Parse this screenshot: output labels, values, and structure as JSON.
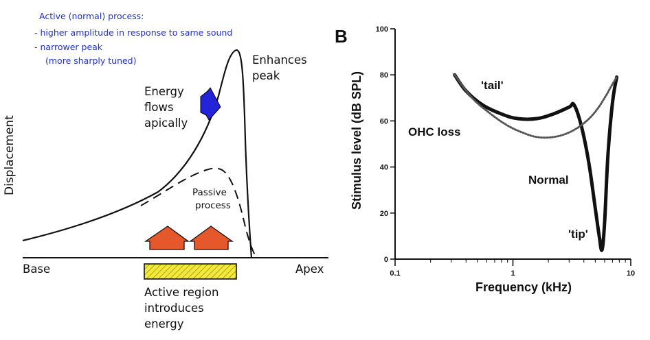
{
  "panel_a": {
    "note_title": "Active (normal) process:",
    "note_line1": "- higher amplitude in response to same sound",
    "note_line2": "- narrower peak",
    "note_line3": "(more sharply tuned)",
    "y_axis_label": "Displacement",
    "x_label_left": "Base",
    "x_label_right": "Apex",
    "peak_label_1": "Enhances",
    "peak_label_2": "peak",
    "energy_1": "Energy",
    "energy_2": "flows",
    "energy_3": "apically",
    "passive_1": "Passive",
    "passive_2": "process",
    "active_region_1": "Active region",
    "active_region_2": "introduces",
    "active_region_3": "energy",
    "colors": {
      "note": "#1f2fd6",
      "flow_arrow": "#2323d8",
      "energy_arrows": "#e4582c",
      "active_region": "#f2e93a"
    }
  },
  "panel_b": {
    "panel_letter": "B",
    "y_axis_label": "Stimulus level (dB SPL)",
    "x_axis_label": "Frequency (kHz)",
    "tail_label": "'tail'",
    "tip_label": "'tip'",
    "ohc_label": "OHC loss",
    "normal_label": "Normal",
    "chart_data": {
      "type": "line",
      "x_scale": "log",
      "xlim": [
        0.1,
        10
      ],
      "ylim": [
        0,
        100
      ],
      "x_ticks": [
        {
          "value": 0.1,
          "label": "0.1"
        },
        {
          "value": 1,
          "label": "1"
        },
        {
          "value": 10,
          "label": "10"
        }
      ],
      "y_ticks": [
        {
          "value": 0,
          "label": "0"
        },
        {
          "value": 20,
          "label": "20"
        },
        {
          "value": 40,
          "label": "40"
        },
        {
          "value": 60,
          "label": "60"
        },
        {
          "value": 80,
          "label": "80"
        },
        {
          "value": 100,
          "label": "100"
        }
      ],
      "series": [
        {
          "name": "Normal",
          "style": "solid-thick",
          "x": [
            0.32,
            0.4,
            0.55,
            0.8,
            1.1,
            1.6,
            2.2,
            3.0,
            3.3,
            3.8,
            4.4,
            5.0,
            5.4,
            5.7,
            6.0,
            6.4,
            7.0,
            7.6
          ],
          "y": [
            80,
            73,
            67,
            63,
            61,
            61,
            63,
            66,
            67,
            58,
            42,
            22,
            10,
            4,
            16,
            45,
            68,
            79
          ]
        },
        {
          "name": "OHC loss",
          "style": "dotted",
          "x": [
            0.32,
            0.45,
            0.65,
            0.9,
            1.2,
            1.6,
            2.2,
            3.0,
            4.0,
            5.0,
            6.0,
            7.0,
            7.6
          ],
          "y": [
            80,
            70,
            63,
            58,
            55,
            53,
            53,
            55,
            59,
            64,
            70,
            76,
            79
          ]
        }
      ]
    }
  }
}
